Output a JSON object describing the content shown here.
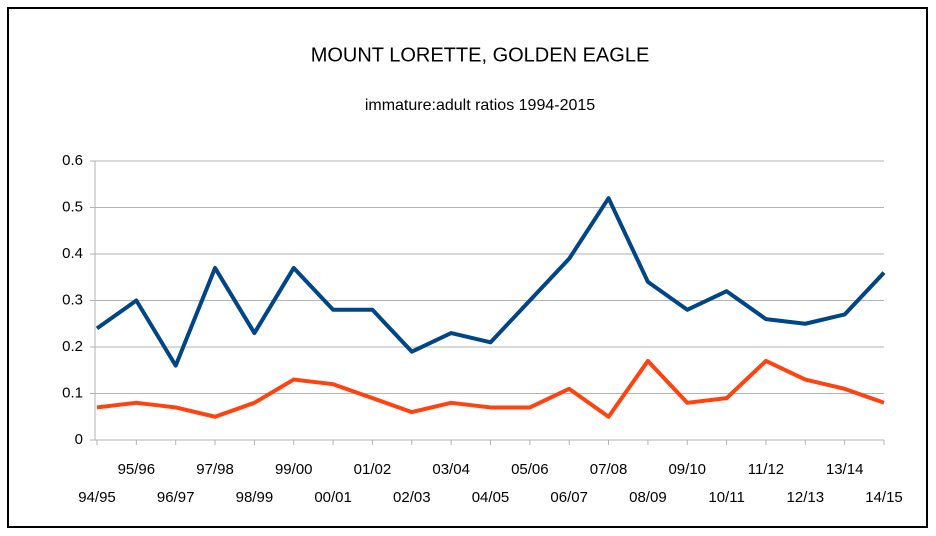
{
  "chart_data": {
    "type": "line",
    "title": "MOUNT LORETTE, GOLDEN EAGLE",
    "subtitle": "immature:adult ratios 1994-2015",
    "categories": [
      "94/95",
      "95/96",
      "96/97",
      "97/98",
      "98/99",
      "99/00",
      "00/01",
      "01/02",
      "02/03",
      "03/04",
      "04/05",
      "05/06",
      "06/07",
      "07/08",
      "08/09",
      "09/10",
      "10/11",
      "11/12",
      "12/13",
      "13/14",
      "14/15"
    ],
    "series": [
      {
        "color": "#004586",
        "values": [
          0.24,
          0.3,
          0.16,
          0.37,
          0.23,
          0.37,
          0.28,
          0.28,
          0.19,
          0.23,
          0.21,
          0.3,
          0.39,
          0.52,
          0.34,
          0.28,
          0.32,
          0.26,
          0.25,
          0.27,
          0.36
        ]
      },
      {
        "color": "#ff420e",
        "values": [
          0.07,
          0.08,
          0.07,
          0.05,
          0.08,
          0.13,
          0.12,
          0.09,
          0.06,
          0.08,
          0.07,
          0.07,
          0.11,
          0.05,
          0.17,
          0.08,
          0.09,
          0.17,
          0.13,
          0.11,
          0.08
        ]
      }
    ],
    "ylim": [
      0,
      0.6
    ],
    "yticks": [
      0,
      0.1,
      0.2,
      0.3,
      0.4,
      0.5,
      0.6
    ],
    "grid": true
  }
}
